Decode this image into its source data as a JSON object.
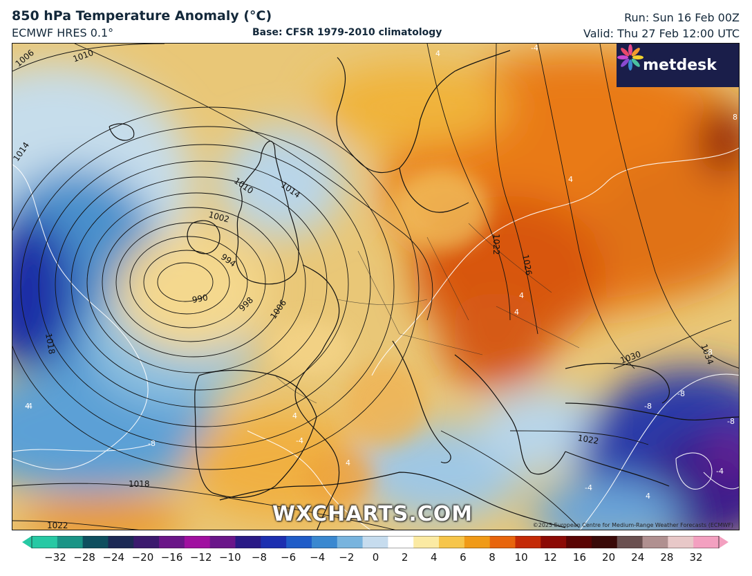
{
  "header": {
    "title": "850 hPa Temperature Anomaly (°C)",
    "model": "ECMWF HRES 0.1°",
    "base": "Base: CFSR 1979-2010 climatology",
    "run": "Run: Sun 16 Feb 00Z",
    "valid": "Valid: Thu 27 Feb 12:00 UTC"
  },
  "branding": {
    "logo": "metdesk",
    "logo_icon": "metdesk-flower-icon",
    "watermark": "WXCHARTS.COM",
    "copyright": "©2025 European Centre for Medium-Range Weather Forecasts (ECMWF)"
  },
  "isobars": {
    "labels": [
      "1006",
      "1010",
      "1014",
      "1010",
      "1014",
      "1002",
      "994",
      "990",
      "998",
      "1006",
      "1018",
      "1022",
      "1026",
      "1030",
      "1034",
      "1022",
      "1018",
      "1022"
    ],
    "low_center_hpa": 990
  },
  "anomaly_labels": [
    "4",
    "-4",
    "4",
    "4",
    "4",
    "4",
    "-8",
    "-4",
    "4",
    "-4",
    "8",
    "-8",
    "-8",
    "-8",
    "-8",
    "-4",
    "4",
    "-4",
    "4"
  ],
  "colorbar": {
    "ticks": [
      "−32",
      "−28",
      "−24",
      "−20",
      "−16",
      "−12",
      "−10",
      "−8",
      "−6",
      "−4",
      "−2",
      "0",
      "2",
      "4",
      "6",
      "8",
      "10",
      "12",
      "16",
      "20",
      "24",
      "28",
      "32"
    ],
    "colors": [
      "#27c9a4",
      "#1a9486",
      "#0f4f5f",
      "#1c2a55",
      "#3b1a6e",
      "#6a1688",
      "#a010a0",
      "#6a168a",
      "#2a1a86",
      "#1c2fb0",
      "#1f5cc8",
      "#3a88d0",
      "#78b4de",
      "#c6dcee",
      "#ffffff",
      "#fbeaa3",
      "#f6c54a",
      "#f09a17",
      "#e8650c",
      "#c42a06",
      "#8c0a05",
      "#5a0403",
      "#3a0a08",
      "#6a5050",
      "#b09090",
      "#e8c8c8",
      "#f3a0c0"
    ]
  }
}
